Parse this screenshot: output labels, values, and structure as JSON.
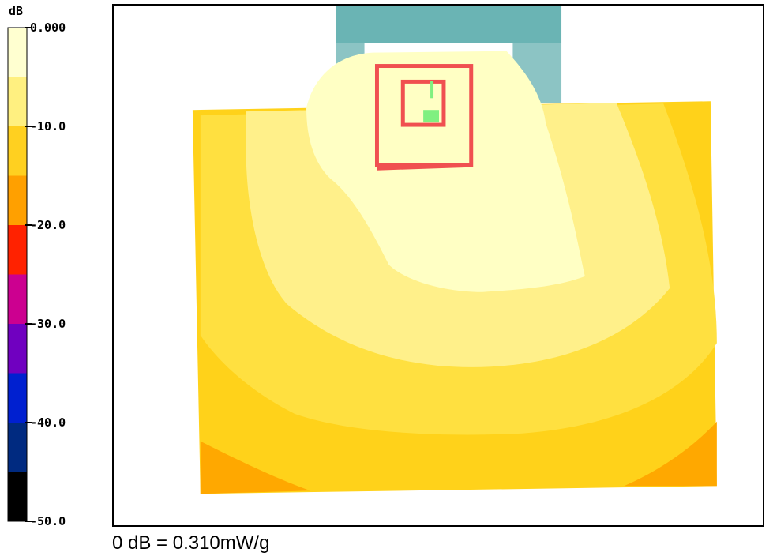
{
  "chart_data": {
    "type": "heatmap",
    "title": "",
    "colorbar": {
      "unit_label": "dB",
      "range": [
        -50,
        0
      ],
      "tick_labels": [
        "0.000",
        "-10.0",
        "-20.0",
        "-30.0",
        "-40.0",
        "-50.0"
      ],
      "tick_values": [
        0,
        -10,
        -20,
        -30,
        -40,
        -50
      ],
      "levels": [
        {
          "from": 0,
          "to": -5,
          "color": "#ffffd0"
        },
        {
          "from": -5,
          "to": -10,
          "color": "#fff080"
        },
        {
          "from": -10,
          "to": -15,
          "color": "#ffd020"
        },
        {
          "from": -15,
          "to": -20,
          "color": "#ffa000"
        },
        {
          "from": -20,
          "to": -25,
          "color": "#ff2200"
        },
        {
          "from": -25,
          "to": -30,
          "color": "#cc0090"
        },
        {
          "from": -30,
          "to": -35,
          "color": "#7000c0"
        },
        {
          "from": -35,
          "to": -40,
          "color": "#0020d0"
        },
        {
          "from": -40,
          "to": -45,
          "color": "#002a80"
        },
        {
          "from": -45,
          "to": -50,
          "color": "#000000"
        }
      ]
    },
    "zones": [
      {
        "name": "outer",
        "level_db": -10,
        "color": "#ffd21a"
      },
      {
        "name": "mid",
        "level_db": -7.5,
        "color": "#ffe040"
      },
      {
        "name": "inner",
        "level_db": -5,
        "color": "#fff08a"
      },
      {
        "name": "core",
        "level_db": -2.5,
        "color": "#ffffc4"
      },
      {
        "name": "corner",
        "level_db": -12.5,
        "color": "#ffa800"
      }
    ],
    "footer": "0 dB = 0.310mW/g"
  },
  "colors": {
    "phone_body": "#6ab4b4",
    "phone_sides": "#8cc4c4",
    "antenna_outline": "#f05050",
    "feed_point": "#80f080"
  }
}
